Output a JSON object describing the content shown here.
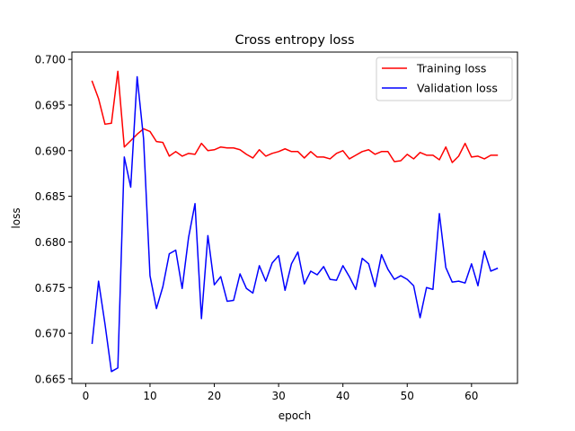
{
  "chart_data": {
    "type": "line",
    "title": "Cross entropy loss",
    "xlabel": "epoch",
    "ylabel": "loss",
    "xlim": [
      -2.15,
      67.15
    ],
    "ylim": [
      0.6645,
      0.7008
    ],
    "xticks": [
      0,
      10,
      20,
      30,
      40,
      50,
      60
    ],
    "yticks": [
      0.665,
      0.67,
      0.675,
      0.68,
      0.685,
      0.69,
      0.695,
      0.7
    ],
    "ytick_labels": [
      "0.665",
      "0.670",
      "0.675",
      "0.680",
      "0.685",
      "0.690",
      "0.695",
      "0.700"
    ],
    "legend_position": "top-right",
    "grid": false,
    "x": [
      1,
      2,
      3,
      4,
      5,
      6,
      7,
      8,
      9,
      10,
      11,
      12,
      13,
      14,
      15,
      16,
      17,
      18,
      19,
      20,
      21,
      22,
      23,
      24,
      25,
      26,
      27,
      28,
      29,
      30,
      31,
      32,
      33,
      34,
      35,
      36,
      37,
      38,
      39,
      40,
      41,
      42,
      43,
      44,
      45,
      46,
      47,
      48,
      49,
      50,
      51,
      52,
      53,
      54,
      55,
      56,
      57,
      58,
      59,
      60,
      61,
      62,
      63,
      64
    ],
    "series": [
      {
        "name": "Training loss",
        "color": "#ff0000",
        "values": [
          0.6976,
          0.6957,
          0.6929,
          0.693,
          0.6987,
          0.6904,
          0.6911,
          0.6918,
          0.6924,
          0.6921,
          0.691,
          0.6909,
          0.6894,
          0.6899,
          0.6894,
          0.6897,
          0.6896,
          0.6908,
          0.69,
          0.6901,
          0.6904,
          0.6903,
          0.6903,
          0.6901,
          0.6896,
          0.6892,
          0.6901,
          0.6894,
          0.6897,
          0.6899,
          0.6902,
          0.6899,
          0.6899,
          0.6892,
          0.6899,
          0.6893,
          0.6893,
          0.6891,
          0.6897,
          0.69,
          0.6891,
          0.6895,
          0.6899,
          0.6901,
          0.6896,
          0.6899,
          0.6899,
          0.6888,
          0.6889,
          0.6896,
          0.6891,
          0.6898,
          0.6895,
          0.6895,
          0.689,
          0.6904,
          0.6887,
          0.6894,
          0.6908,
          0.6893,
          0.6894,
          0.6891,
          0.6895,
          0.6895
        ]
      },
      {
        "name": "Validation loss",
        "color": "#0000ff",
        "values": [
          0.6689,
          0.6757,
          0.671,
          0.6658,
          0.6662,
          0.6893,
          0.686,
          0.6981,
          0.6913,
          0.6763,
          0.6727,
          0.6751,
          0.6787,
          0.6791,
          0.6749,
          0.6805,
          0.6842,
          0.6716,
          0.6807,
          0.6753,
          0.6762,
          0.6735,
          0.6736,
          0.6765,
          0.6749,
          0.6744,
          0.6774,
          0.6757,
          0.6777,
          0.6785,
          0.6747,
          0.6776,
          0.6789,
          0.6754,
          0.6768,
          0.6764,
          0.6773,
          0.6759,
          0.6758,
          0.6774,
          0.6762,
          0.6748,
          0.6782,
          0.6776,
          0.6751,
          0.6786,
          0.677,
          0.6759,
          0.6763,
          0.6759,
          0.6752,
          0.6717,
          0.675,
          0.6748,
          0.6831,
          0.6772,
          0.6756,
          0.6757,
          0.6755,
          0.6776,
          0.6752,
          0.679,
          0.6768,
          0.6771
        ]
      }
    ]
  }
}
